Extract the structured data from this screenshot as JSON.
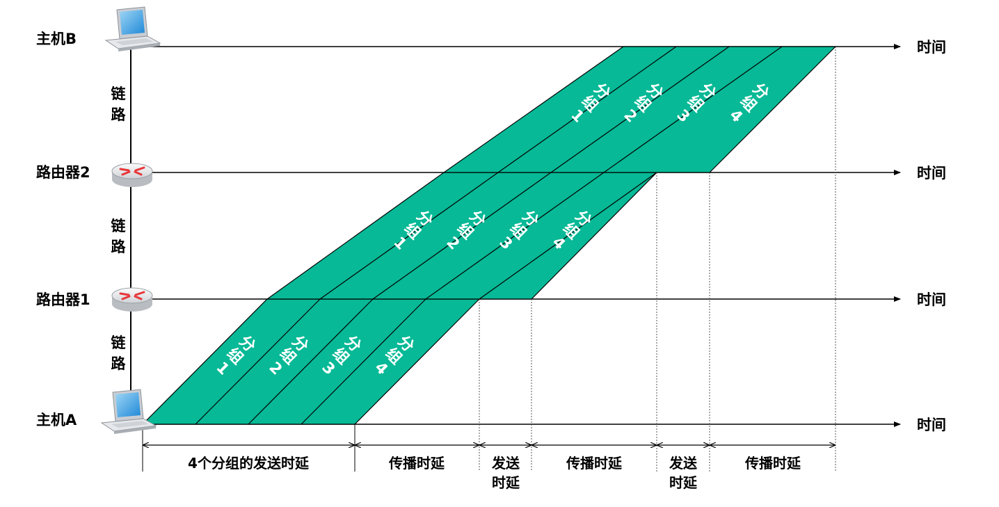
{
  "nodes": {
    "host_b": "主机B",
    "router_2": "路由器2",
    "router_1": "路由器1",
    "host_a": "主机A"
  },
  "links": {
    "upper": [
      "链",
      "路"
    ],
    "middle": [
      "链",
      "路"
    ],
    "lower": [
      "链",
      "路"
    ]
  },
  "axis_label": "时间",
  "packets": {
    "host_a_to_router_1": [
      {
        "name": [
          "分",
          "组"
        ],
        "num": "1"
      },
      {
        "name": [
          "分",
          "组"
        ],
        "num": "2"
      },
      {
        "name": [
          "分",
          "组"
        ],
        "num": "3"
      },
      {
        "name": [
          "分",
          "组"
        ],
        "num": "4"
      }
    ],
    "router_1_to_router_2": [
      {
        "name": [
          "分",
          "组"
        ],
        "num": "1"
      },
      {
        "name": [
          "分",
          "组"
        ],
        "num": "2"
      },
      {
        "name": [
          "分",
          "组"
        ],
        "num": "3"
      },
      {
        "name": [
          "分",
          "组"
        ],
        "num": "4"
      }
    ],
    "router_2_to_host_b": [
      {
        "name": [
          "分",
          "组"
        ],
        "num": "1"
      },
      {
        "name": [
          "分",
          "组"
        ],
        "num": "2"
      },
      {
        "name": [
          "分",
          "组"
        ],
        "num": "3"
      },
      {
        "name": [
          "分",
          "组"
        ],
        "num": "4"
      }
    ]
  },
  "delays": {
    "send_4_packets": "4个分组的发送时延",
    "propagation_1": "传播时延",
    "send_1": [
      "发送",
      "时延"
    ],
    "propagation_2": "传播时延",
    "send_2": [
      "发送",
      "时延"
    ],
    "propagation_3": "传播时延"
  },
  "colors": {
    "packet_fill": "#07b996",
    "line": "#000000",
    "router_mark": "#e8373a"
  },
  "icons": {
    "hosts": "laptop-icon",
    "routers": "router-icon"
  }
}
